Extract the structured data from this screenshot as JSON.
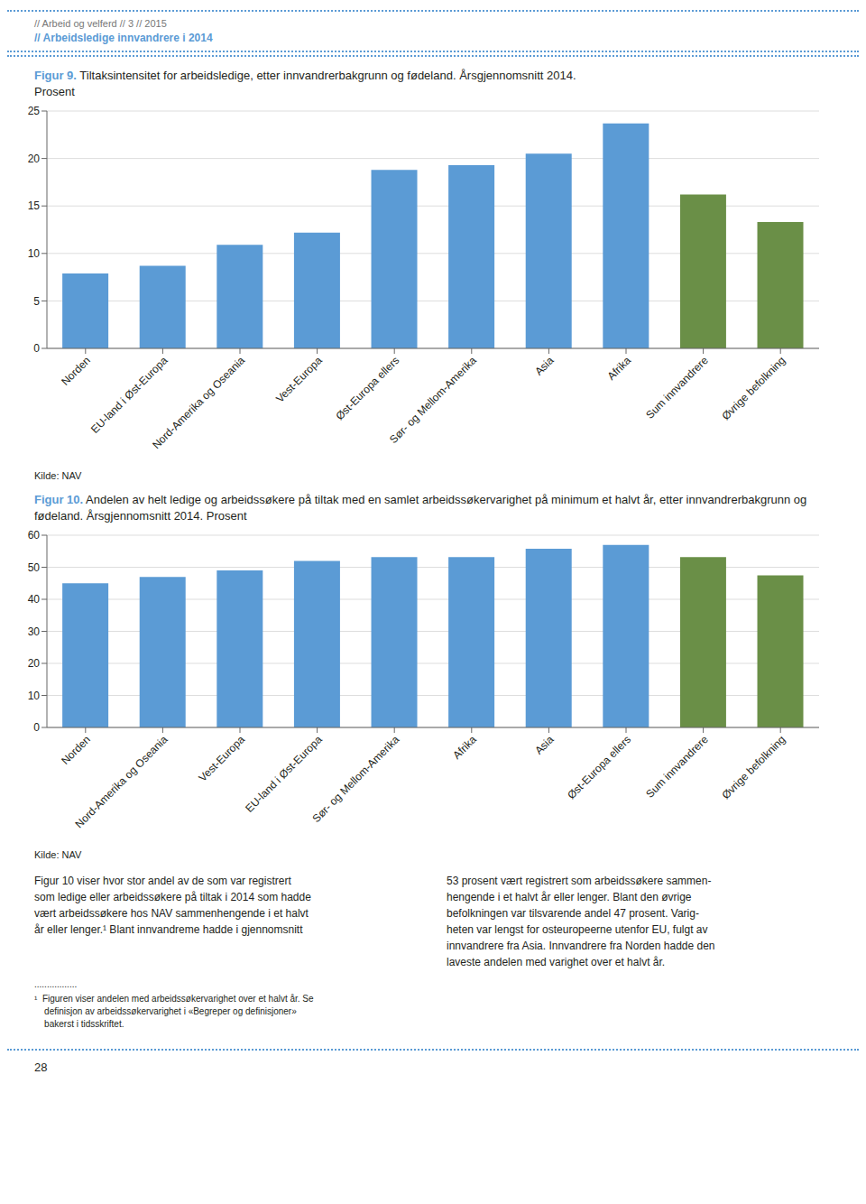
{
  "chart_data": [
    {
      "type": "bar",
      "title": "Figur 9. Tiltaksintensitet for arbeidsledige, etter innvandrerbakgrunn og fødeland. Årsgjennomsnitt 2014.",
      "subtitle": "Prosent",
      "categories": [
        "Norden",
        "EU-land i Øst-Europa",
        "Nord-Amerika og Oseania",
        "Vest-Europa",
        "Øst-Europa ellers",
        "Sør- og Mellom-Amerika",
        "Asia",
        "Afrika",
        "Sum innvandrere",
        "Øvrige befolkning"
      ],
      "values": [
        7.9,
        8.7,
        10.9,
        12.2,
        18.8,
        19.3,
        20.5,
        23.7,
        16.2,
        13.3
      ],
      "colors": [
        "#5b9bd5",
        "#5b9bd5",
        "#5b9bd5",
        "#5b9bd5",
        "#5b9bd5",
        "#5b9bd5",
        "#5b9bd5",
        "#5b9bd5",
        "#6a8f47",
        "#6a8f47"
      ],
      "ylim": [
        0,
        25
      ],
      "yticks": [
        0,
        5,
        10,
        15,
        20,
        25
      ],
      "grid": true,
      "annotations": [
        "// Arbeid og velferd // 3 // 2015",
        "// Arbeidsledige innvandrere i 2014",
        "Kilde: NAV"
      ]
    },
    {
      "type": "bar",
      "title": "Figur 10. Andelen av helt ledige og arbeidssøkere på tiltak med en samlet arbeidssøkervarighet på minimum et halvt år, etter innvandrerbakgrunn og fødeland. Årsgjennomsnitt 2014. Prosent",
      "categories": [
        "Norden",
        "Nord-Amerika og Oseania",
        "Vest-Europa",
        "EU-land i Øst-Europa",
        "Sør- og Mellom-Amerika",
        "Afrika",
        "Asia",
        "Øst-Europa ellers",
        "Sum innvandrere",
        "Øvrige befolkning"
      ],
      "values": [
        45.0,
        47.0,
        49.0,
        52.0,
        53.2,
        53.2,
        55.8,
        57.0,
        53.2,
        47.5
      ],
      "colors": [
        "#5b9bd5",
        "#5b9bd5",
        "#5b9bd5",
        "#5b9bd5",
        "#5b9bd5",
        "#5b9bd5",
        "#5b9bd5",
        "#5b9bd5",
        "#6a8f47",
        "#6a8f47"
      ],
      "ylim": [
        0,
        60
      ],
      "yticks": [
        0,
        10,
        20,
        30,
        40,
        50,
        60
      ],
      "grid": true,
      "annotations": [
        "Kilde: NAV",
        "Figur 10 viser hvor stor andel av de som var registrert\nsom ledige eller arbeidssøkere på tiltak i 2014 som hadde\nvært arbeidssøkere hos NAV sammenhengende i et halvt\når eller lenger.¹ Blant innvandreme hadde i gjennomsnitt",
        "53 prosent vært registrert som arbeidssøkere sammen-\nhengende i et halvt år eller lenger. Blant den øvrige\nbefolkningen var tilsvarende andel 47 prosent. Varig-\nheten var lengst for osteuropeerne utenfor EU, fulgt av\ninnvandrere fra Asia. Innvandrere fra Norden hadde den\nlaveste andelen med varighet over et halvt år.",
        ".................",
        "¹  Figuren viser andelen med arbeidssøkervarighet over et halvt år. Se\n    definisjon av arbeidssøkervarighet i «Begreper og definisjoner»\n    bakerst i tidsskriftet.",
        "28"
      ]
    }
  ]
}
